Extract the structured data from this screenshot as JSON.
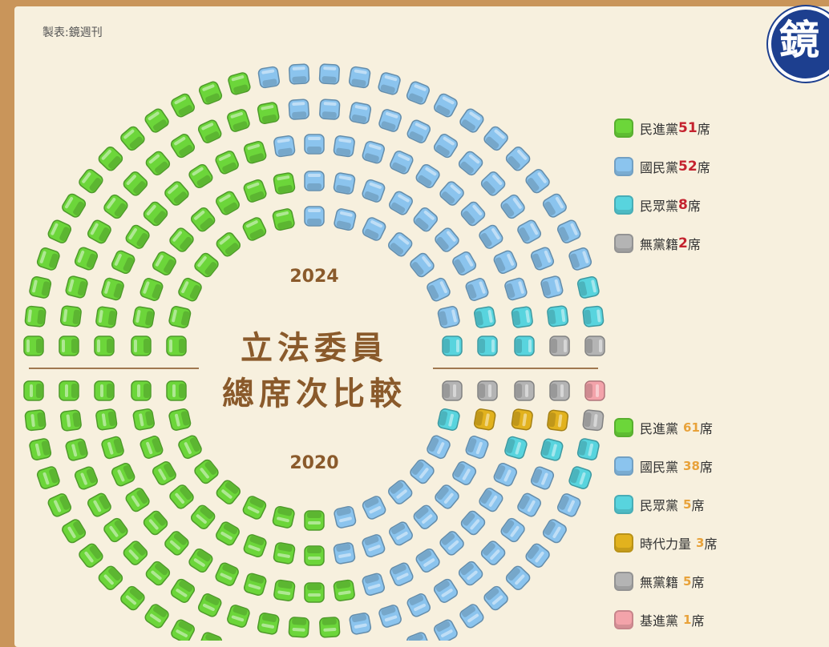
{
  "credit": "製表:鏡週刊",
  "logo_text": "鏡",
  "colors": {
    "dpp": "#6cd63a",
    "kmt": "#8bc4ee",
    "tpp": "#58d4de",
    "npp": "#e2b21e",
    "ind": "#b4b4b4",
    "tsp": "#f3a3aa",
    "divider": "#a07850",
    "title": "#8a5a2b"
  },
  "chart_data": [
    {
      "type": "seat-hemicycle",
      "year_label": "2024",
      "series": [
        {
          "name": "民進黨",
          "key": "dpp",
          "values": [
            51
          ]
        },
        {
          "name": "國民黨",
          "key": "kmt",
          "values": [
            52
          ]
        },
        {
          "name": "民眾黨",
          "key": "tpp",
          "values": [
            8
          ]
        },
        {
          "name": "無黨籍",
          "key": "ind",
          "values": [
            2
          ]
        }
      ],
      "unit": "席"
    },
    {
      "type": "seat-hemicycle",
      "year_label": "2020",
      "series": [
        {
          "name": "民進黨",
          "key": "dpp",
          "values": [
            61
          ]
        },
        {
          "name": "國民黨",
          "key": "kmt",
          "values": [
            38
          ]
        },
        {
          "name": "民眾黨",
          "key": "tpp",
          "values": [
            5
          ]
        },
        {
          "name": "時代力量",
          "key": "npp",
          "values": [
            3
          ]
        },
        {
          "name": "無黨籍",
          "key": "ind",
          "values": [
            5
          ]
        },
        {
          "name": "基進黨",
          "key": "tsp",
          "values": [
            1
          ]
        }
      ],
      "unit": "席"
    }
  ],
  "title_line1": "立法委員",
  "title_line2": "總席次比較",
  "legend_2024": [
    {
      "name": "民進黨",
      "count": "51",
      "unit": "席",
      "key": "dpp"
    },
    {
      "name": "國民黨",
      "count": "52",
      "unit": "席",
      "key": "kmt"
    },
    {
      "name": "民眾黨",
      "count": "8",
      "unit": "席",
      "key": "tpp"
    },
    {
      "name": "無黨籍",
      "count": "2",
      "unit": "席",
      "key": "ind"
    }
  ],
  "legend_2020": [
    {
      "name": "民進黨",
      "count": "61",
      "unit": "席",
      "key": "dpp"
    },
    {
      "name": "國民黨",
      "count": "38",
      "unit": "席",
      "key": "kmt"
    },
    {
      "name": "民眾黨",
      "count": "5",
      "unit": "席",
      "key": "tpp"
    },
    {
      "name": "時代力量",
      "count": "3",
      "unit": "席",
      "key": "npp"
    },
    {
      "name": "無黨籍",
      "count": "5",
      "unit": "席",
      "key": "ind"
    },
    {
      "name": "基進黨",
      "count": "1",
      "unit": "席",
      "key": "tsp"
    }
  ]
}
